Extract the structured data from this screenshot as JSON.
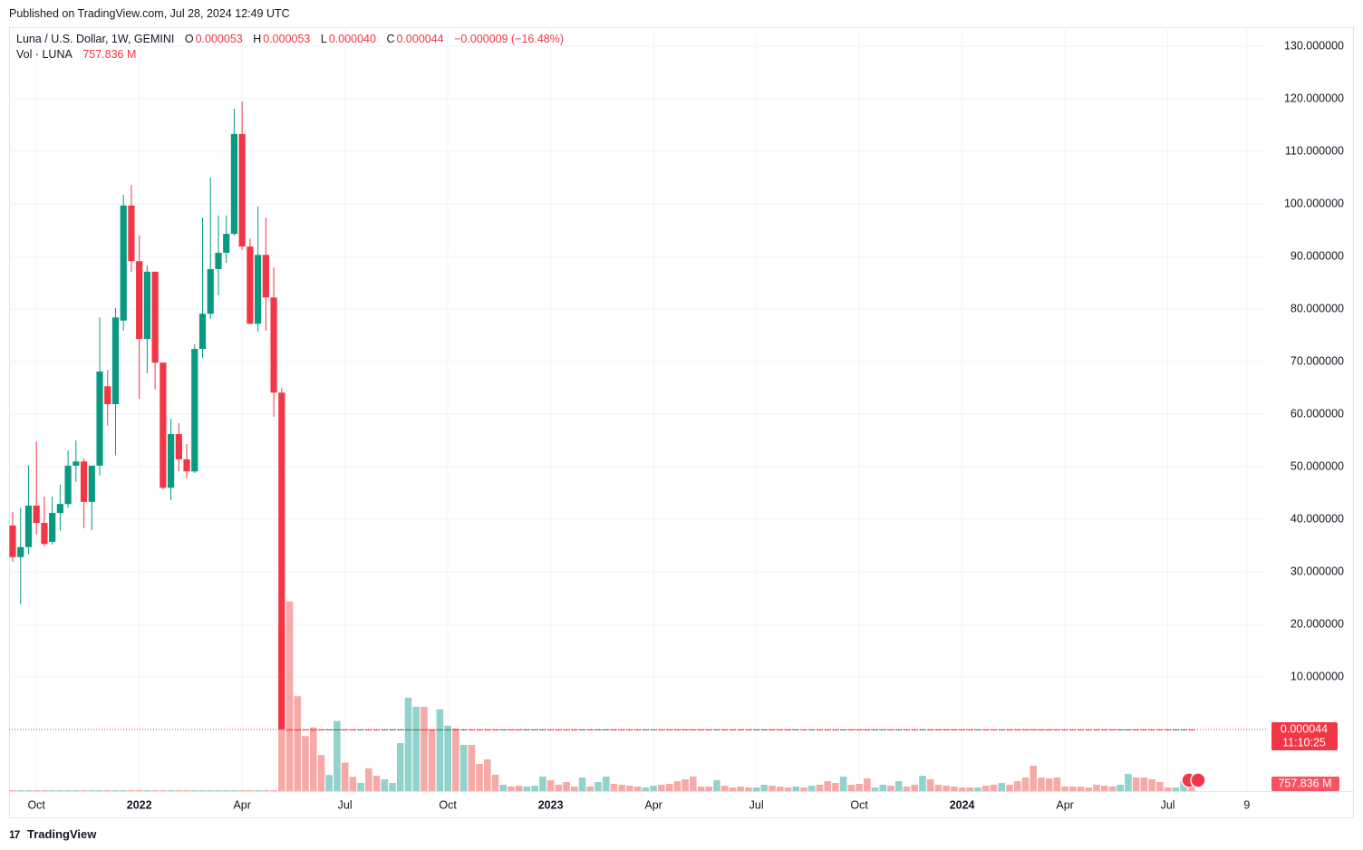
{
  "published": "Published on TradingView.com, Jul 28, 2024 12:49 UTC",
  "brand": "TradingView",
  "chart_data": {
    "type": "candlestick",
    "title": "Luna / U.S. Dollar, 1W, GEMINI",
    "legend_keys": [
      "O",
      "H",
      "L",
      "C"
    ],
    "legend": {
      "open": "0.000053",
      "high": "0.000053",
      "low": "0.000040",
      "close": "0.000044",
      "change": "−0.000009 (−16.48%)"
    },
    "volume_title": "Vol · LUNA",
    "volume_label": "757.836 M",
    "close_label": "0.000044",
    "countdown": "11:10:25",
    "up_color": "#089981",
    "down_color": "#f23645",
    "volume_up_color": "#92d2cc",
    "volume_down_color": "#f7a9a7",
    "grid": true,
    "ylim": [
      -11.72,
      132.76
    ],
    "yticks": [
      {
        "value": 10,
        "label": "10.000000"
      },
      {
        "value": 20,
        "label": "20.000000"
      },
      {
        "value": 30,
        "label": "30.000000"
      },
      {
        "value": 40,
        "label": "40.000000"
      },
      {
        "value": 50,
        "label": "50.000000"
      },
      {
        "value": 60,
        "label": "60.000000"
      },
      {
        "value": 70,
        "label": "70.000000"
      },
      {
        "value": 80,
        "label": "80.000000"
      },
      {
        "value": 90,
        "label": "90.000000"
      },
      {
        "value": 100,
        "label": "100.000000"
      },
      {
        "value": 110,
        "label": "110.000000"
      },
      {
        "value": 120,
        "label": "120.000000"
      },
      {
        "value": 130,
        "label": "130.000000"
      }
    ],
    "y2lim": [
      0,
      80000
    ],
    "categories": [
      null,
      null,
      null,
      "Oct",
      null,
      null,
      null,
      null,
      null,
      null,
      null,
      null,
      null,
      null,
      null,
      null,
      "2022",
      null,
      null,
      null,
      null,
      null,
      null,
      null,
      null,
      null,
      null,
      null,
      null,
      "Apr",
      null,
      null,
      null,
      null,
      null,
      null,
      null,
      null,
      null,
      null,
      null,
      null,
      "Jul",
      null,
      null,
      null,
      null,
      null,
      null,
      null,
      null,
      null,
      null,
      null,
      null,
      "Oct",
      null,
      null,
      null,
      null,
      null,
      null,
      null,
      null,
      null,
      null,
      null,
      null,
      "2023",
      null,
      null,
      null,
      null,
      null,
      null,
      null,
      null,
      null,
      null,
      null,
      null,
      "Apr",
      null,
      null,
      null,
      null,
      null,
      null,
      null,
      null,
      null,
      null,
      null,
      null,
      "Jul",
      null,
      null,
      null,
      null,
      null,
      null,
      null,
      null,
      null,
      null,
      null,
      null,
      "Oct",
      null,
      null,
      null,
      null,
      null,
      null,
      null,
      null,
      null,
      null,
      null,
      null,
      "2024",
      null,
      null,
      null,
      null,
      null,
      null,
      null,
      null,
      null,
      null,
      null,
      null,
      "Apr",
      null,
      null,
      null,
      null,
      null,
      null,
      null,
      null,
      null,
      null,
      null,
      null,
      "Jul",
      null,
      null,
      null,
      null,
      null,
      null,
      null,
      null,
      null,
      "9"
    ],
    "open": [
      38.8,
      32.8,
      34.7,
      42.6,
      39.3,
      35.7,
      41.2,
      42.9,
      50.2,
      51.0,
      43.3,
      50.2,
      65.3,
      61.9,
      77.8,
      99.7,
      89.1,
      74.3,
      87.1,
      69.8,
      46.0,
      56.2,
      51.4,
      49.1,
      72.4,
      79.1,
      87.6,
      90.7,
      94.3,
      113.3,
      91.9,
      77.2,
      90.3,
      82.2,
      64.1,
      0.00011,
      0.00011,
      0.00011,
      0.00011,
      0.00011,
      0.0001,
      0.0001,
      0.00011,
      0.00011,
      0.0001,
      0.00011,
      0.00011,
      0.0001,
      0.0001,
      0.0001,
      0.0001,
      0.0001,
      0.00011,
      0.00011,
      0.0001,
      0.0001,
      0.00011,
      0.0001,
      0.00011,
      0.00011,
      0.00011,
      0.00011,
      0.0001,
      0.00011,
      0.00011,
      0.0001,
      0.0001,
      0.0001,
      0.00011,
      0.00011,
      0.00011,
      0.00011,
      0.0001,
      0.00011,
      0.0001,
      0.0001,
      0.00011,
      0.00011,
      0.00011,
      0.00011,
      0.0001,
      0.0001,
      0.00011,
      0.00011,
      0.00011,
      0.00011,
      0.00011,
      0.00011,
      0.00011,
      0.0001,
      0.00011,
      0.00011,
      0.00011,
      0.00011,
      0.0001,
      0.0001,
      0.00011,
      0.00011,
      0.00011,
      0.0001,
      0.00011,
      0.0001,
      0.00011,
      0.00011,
      0.00011,
      0.0001,
      0.00011,
      0.00011,
      0.00011,
      0.0001,
      0.0001,
      0.00011,
      0.0001,
      0.00011,
      0.00011,
      0.0001,
      0.00011,
      0.00011,
      0.00011,
      0.00011,
      0.00011,
      0.00011,
      0.0001,
      0.00011,
      0.00011,
      0.0001,
      0.00011,
      0.00011,
      0.00011,
      0.00011,
      0.00011,
      0.00011,
      0.00011,
      0.00011,
      0.00011,
      0.00011,
      0.00011,
      0.00011,
      0.00011,
      0.00011,
      0.0001,
      0.0001,
      0.00011,
      0.00011,
      0.00011,
      0.00011,
      0.00011,
      0.0001,
      0.0001,
      5.3e-05,
      null,
      null,
      null,
      null,
      null,
      null,
      null
    ],
    "close": [
      32.8,
      34.7,
      42.6,
      39.3,
      35.3,
      41.2,
      42.9,
      50.2,
      51.0,
      43.3,
      50.2,
      68.1,
      61.9,
      78.4,
      99.7,
      89.1,
      74.3,
      87.1,
      69.8,
      46.0,
      56.2,
      51.4,
      49.1,
      72.4,
      79.1,
      87.6,
      90.7,
      94.3,
      113.3,
      91.9,
      77.2,
      90.3,
      82.2,
      64.1,
      0.00011,
      0.0001,
      0.0001,
      0.0001,
      0.0001,
      0.0001,
      0.00011,
      0.00011,
      0.0001,
      0.0001,
      0.00011,
      0.0001,
      0.0001,
      0.00011,
      0.00011,
      0.00011,
      0.00011,
      0.00011,
      0.0001,
      0.0001,
      0.00011,
      0.00011,
      0.0001,
      0.00011,
      0.0001,
      0.0001,
      0.0001,
      0.0001,
      0.00011,
      0.0001,
      0.0001,
      0.00011,
      0.00011,
      0.00011,
      0.0001,
      0.0001,
      0.0001,
      0.0001,
      0.00011,
      0.0001,
      0.00011,
      0.00011,
      0.0001,
      0.0001,
      0.0001,
      0.0001,
      0.00011,
      0.00011,
      0.0001,
      0.0001,
      0.0001,
      0.0001,
      0.0001,
      0.0001,
      0.0001,
      0.00011,
      0.0001,
      0.0001,
      0.0001,
      0.0001,
      0.00011,
      0.00011,
      0.0001,
      0.0001,
      0.0001,
      0.00011,
      0.0001,
      0.00011,
      0.0001,
      0.0001,
      0.0001,
      0.00011,
      0.0001,
      0.0001,
      0.0001,
      0.00011,
      0.00011,
      0.0001,
      0.00011,
      0.0001,
      0.0001,
      0.00011,
      0.0001,
      0.0001,
      0.0001,
      0.0001,
      0.0001,
      0.0001,
      0.00011,
      0.0001,
      0.0001,
      0.00011,
      0.0001,
      0.0001,
      0.0001,
      0.0001,
      0.0001,
      0.0001,
      0.0001,
      0.0001,
      0.0001,
      0.0001,
      0.0001,
      0.0001,
      0.0001,
      0.0001,
      0.00011,
      0.00011,
      0.0001,
      0.0001,
      0.0001,
      0.0001,
      0.0001,
      0.00011,
      0.00011,
      4.4e-05,
      null,
      null,
      null,
      null,
      null,
      null,
      null
    ],
    "high": [
      41.4,
      42.2,
      50.3,
      54.8,
      44.3,
      44.3,
      46.6,
      53.1,
      55.0,
      51.6,
      50.2,
      78.4,
      68.4,
      80.2,
      101.7,
      103.6,
      94.0,
      88.3,
      87.1,
      69.8,
      59.1,
      58.3,
      54.3,
      73.3,
      97.4,
      105.0,
      97.8,
      97.8,
      118.1,
      119.5,
      93.4,
      99.5,
      97.4,
      87.9,
      65.0,
      0.00012,
      0.00012,
      0.00012,
      0.00012,
      0.00012,
      0.00012,
      0.00012,
      0.00012,
      0.00012,
      0.00012,
      0.00012,
      0.00012,
      0.00012,
      0.00012,
      0.00012,
      0.00012,
      0.00012,
      0.00012,
      0.00012,
      0.00012,
      0.00012,
      0.00012,
      0.00012,
      0.00012,
      0.00012,
      0.00012,
      0.00012,
      0.00012,
      0.00012,
      0.00012,
      0.00012,
      0.00012,
      0.00012,
      0.00012,
      0.00012,
      0.00012,
      0.00012,
      0.00012,
      0.00012,
      0.00012,
      0.00012,
      0.00012,
      0.00012,
      0.00012,
      0.00012,
      0.00012,
      0.00012,
      0.00012,
      0.00012,
      0.00012,
      0.00012,
      0.00012,
      0.00012,
      0.00012,
      0.00012,
      0.00012,
      0.00012,
      0.00012,
      0.00012,
      0.00012,
      0.00012,
      0.00012,
      0.00012,
      0.00012,
      0.00012,
      0.00012,
      0.00012,
      0.00012,
      0.00012,
      0.00012,
      0.00012,
      0.00012,
      0.00012,
      0.00012,
      0.00012,
      0.00012,
      0.00012,
      0.00012,
      0.00012,
      0.00012,
      0.00012,
      0.00012,
      0.00012,
      0.00012,
      0.00012,
      0.00012,
      0.00012,
      0.00012,
      0.00012,
      0.00012,
      0.00012,
      0.00012,
      0.00012,
      0.00012,
      0.00012,
      0.00012,
      0.00012,
      0.00012,
      0.00012,
      0.00012,
      0.00012,
      0.00012,
      0.00012,
      0.00012,
      0.00012,
      0.00012,
      0.00012,
      0.00012,
      0.00012,
      0.00012,
      0.00012,
      0.00012,
      0.00012,
      0.00012,
      5.3e-05,
      null,
      null,
      null,
      null,
      null,
      null,
      null
    ],
    "low": [
      31.9,
      23.8,
      33.3,
      37.1,
      34.8,
      35.2,
      37.8,
      42.2,
      47.1,
      38.3,
      37.9,
      48.3,
      57.8,
      52.2,
      75.9,
      87.1,
      62.9,
      67.8,
      64.7,
      45.7,
      43.6,
      49.1,
      47.8,
      48.8,
      70.7,
      78.1,
      82.6,
      88.8,
      94.0,
      91.2,
      77.1,
      75.7,
      75.9,
      59.5,
      0.0001,
      9e-05,
      9e-05,
      9e-05,
      9e-05,
      9e-05,
      9e-05,
      9e-05,
      9e-05,
      9e-05,
      9e-05,
      9e-05,
      9e-05,
      9e-05,
      9e-05,
      9e-05,
      9e-05,
      9e-05,
      9e-05,
      9e-05,
      9e-05,
      9e-05,
      9e-05,
      9e-05,
      9e-05,
      9e-05,
      9e-05,
      9e-05,
      9e-05,
      9e-05,
      9e-05,
      9e-05,
      9e-05,
      9e-05,
      9e-05,
      9e-05,
      9e-05,
      9e-05,
      9e-05,
      9e-05,
      9e-05,
      9e-05,
      9e-05,
      9e-05,
      9e-05,
      9e-05,
      9e-05,
      9e-05,
      9e-05,
      9e-05,
      9e-05,
      9e-05,
      9e-05,
      9e-05,
      9e-05,
      9e-05,
      9e-05,
      9e-05,
      9e-05,
      9e-05,
      9e-05,
      9e-05,
      9e-05,
      9e-05,
      9e-05,
      9e-05,
      9e-05,
      9e-05,
      9e-05,
      9e-05,
      9e-05,
      9e-05,
      9e-05,
      9e-05,
      9e-05,
      9e-05,
      9e-05,
      9e-05,
      9e-05,
      9e-05,
      9e-05,
      9e-05,
      9e-05,
      9e-05,
      9e-05,
      9e-05,
      9e-05,
      9e-05,
      9e-05,
      9e-05,
      9e-05,
      9e-05,
      9e-05,
      9e-05,
      9e-05,
      9e-05,
      9e-05,
      9e-05,
      9e-05,
      9e-05,
      9e-05,
      9e-05,
      9e-05,
      9e-05,
      9e-05,
      9e-05,
      9e-05,
      9e-05,
      9e-05,
      9e-05,
      9e-05,
      9e-05,
      9e-05,
      9e-05,
      9e-05,
      4e-05,
      null,
      null,
      null,
      null,
      null,
      null,
      null
    ],
    "volume": [
      100,
      100,
      100,
      100,
      100,
      100,
      100,
      100,
      100,
      100,
      100,
      100,
      100,
      100,
      100,
      100,
      100,
      100,
      100,
      100,
      100,
      100,
      100,
      100,
      100,
      100,
      100,
      100,
      100,
      100,
      100,
      100,
      100,
      100,
      17500,
      20000,
      10000,
      5800,
      6700,
      3800,
      1700,
      7400,
      3000,
      1500,
      860,
      2400,
      1600,
      1240,
      860,
      5060,
      9840,
      8880,
      8880,
      6500,
      8600,
      6900,
      6600,
      4870,
      4870,
      2870,
      3340,
      1720,
      670,
      480,
      570,
      480,
      570,
      1530,
      1150,
      670,
      950,
      480,
      1430,
      480,
      950,
      1530,
      760,
      670,
      570,
      480,
      380,
      570,
      670,
      760,
      1050,
      1240,
      1530,
      480,
      480,
      1150,
      570,
      380,
      480,
      380,
      380,
      670,
      570,
      480,
      380,
      480,
      380,
      570,
      670,
      1050,
      860,
      1530,
      670,
      760,
      1340,
      380,
      670,
      570,
      1050,
      480,
      670,
      1620,
      1240,
      670,
      570,
      480,
      380,
      380,
      380,
      570,
      670,
      860,
      670,
      1050,
      1430,
      2670,
      1430,
      1340,
      1430,
      480,
      480,
      480,
      380,
      670,
      570,
      480,
      670,
      1810,
      1430,
      1430,
      1240,
      950,
      380,
      380,
      1050,
      757.836,
      null,
      null,
      null,
      null,
      null,
      null,
      null
    ]
  }
}
